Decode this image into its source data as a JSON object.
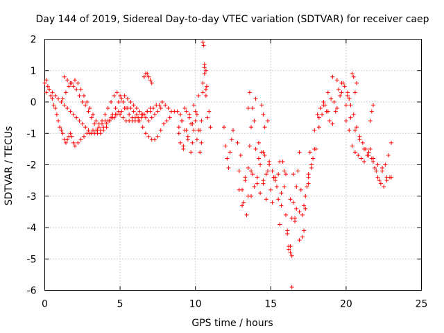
{
  "chart_data": {
    "type": "scatter",
    "title": "Day 144 of 2019, Sidereal Day-to-day VTEC variation (SDTVAR) for receiver caep",
    "xlabel": "GPS time / hours",
    "ylabel": "SDTVAR / TECUs",
    "xlim": [
      0,
      25
    ],
    "ylim": [
      -6,
      2
    ],
    "xticks": [
      0,
      5,
      10,
      15,
      20,
      25
    ],
    "yticks": [
      -6,
      -5,
      -4,
      -3,
      -2,
      -1,
      0,
      1,
      2
    ],
    "grid": true,
    "marker": "+",
    "color": "#ff0000",
    "series": [
      {
        "name": "SDTVAR",
        "x": [
          0.0,
          0.1,
          0.2,
          0.3,
          0.4,
          0.5,
          0.6,
          0.7,
          0.8,
          0.9,
          1.0,
          1.1,
          1.2,
          1.3,
          1.4,
          1.5,
          1.6,
          1.7,
          1.8,
          1.9,
          2.0,
          2.2,
          2.4,
          2.6,
          2.8,
          3.0,
          3.2,
          3.4,
          3.6,
          3.8,
          4.0,
          4.2,
          4.4,
          4.6,
          4.8,
          5.0,
          5.2,
          5.4,
          5.6,
          5.8,
          6.0,
          6.2,
          6.4,
          6.6,
          6.8,
          7.0,
          7.2,
          7.4,
          7.6,
          7.8,
          8.0,
          8.2,
          8.4,
          8.6,
          0.1,
          0.3,
          0.5,
          0.7,
          0.9,
          1.1,
          1.3,
          1.5,
          1.7,
          1.9,
          2.1,
          2.3,
          2.5,
          2.7,
          2.9,
          3.1,
          3.3,
          3.5,
          3.7,
          3.9,
          4.1,
          4.3,
          4.5,
          4.7,
          4.9,
          5.1,
          5.3,
          5.5,
          5.7,
          5.9,
          6.1,
          6.3,
          6.5,
          6.7,
          6.9,
          7.1,
          7.3,
          7.5,
          7.7,
          7.9,
          8.1,
          8.3,
          1.3,
          1.5,
          1.7,
          1.9,
          2.1,
          2.3,
          2.5,
          2.7,
          2.9,
          3.1,
          3.3,
          3.5,
          3.7,
          3.9,
          4.1,
          4.3,
          4.5,
          4.7,
          4.9,
          5.1,
          5.3,
          5.5,
          5.7,
          5.9,
          6.1,
          6.3,
          6.5,
          6.7,
          6.9,
          7.1,
          7.3,
          7.5,
          7.7,
          1.2,
          1.4,
          1.6,
          1.8,
          2.0,
          2.2,
          2.4,
          2.6,
          2.8,
          3.0,
          3.2,
          3.4,
          3.6,
          3.8,
          4.0,
          4.2,
          4.4,
          4.6,
          4.8,
          5.0,
          5.2,
          5.4,
          5.6,
          5.8,
          6.0,
          6.2,
          6.4,
          6.6,
          6.8,
          7.0,
          6.6,
          6.7,
          6.8,
          6.9,
          7.0,
          7.1,
          8.8,
          8.9,
          9.0,
          9.1,
          9.2,
          9.3,
          9.4,
          9.5,
          9.6,
          9.7,
          9.8,
          9.9,
          10.0,
          10.1,
          10.2,
          10.3,
          10.4,
          10.5,
          10.6,
          10.7,
          10.8,
          10.9,
          11.0,
          8.9,
          9.0,
          9.1,
          9.2,
          9.3,
          9.4,
          9.5,
          9.6,
          9.7,
          9.8,
          9.9,
          10.0,
          10.1,
          10.2,
          10.3,
          10.4,
          10.5,
          10.6,
          10.7,
          10.5,
          10.55,
          10.6,
          10.7,
          10.75,
          11.9,
          12.0,
          12.1,
          12.2,
          12.3,
          12.4,
          12.5,
          12.8,
          12.9,
          13.0,
          13.1,
          13.2,
          13.3,
          13.4,
          13.5,
          13.6,
          13.7,
          13.8,
          13.9,
          14.0,
          14.1,
          14.2,
          14.3,
          14.4,
          14.5,
          14.6,
          14.7,
          14.8,
          14.9,
          15.0,
          15.1,
          15.2,
          15.3,
          15.4,
          15.5,
          15.6,
          15.7,
          15.8,
          15.9,
          16.0,
          16.1,
          16.2,
          16.3,
          16.4,
          16.5,
          16.6,
          16.7,
          16.8,
          16.9,
          17.0,
          17.1,
          17.2,
          17.3,
          17.4,
          17.5,
          17.6,
          17.7,
          17.8,
          17.9,
          12.9,
          13.1,
          13.3,
          13.5,
          13.7,
          13.9,
          14.1,
          14.3,
          14.5,
          14.7,
          14.9,
          15.1,
          15.3,
          15.5,
          15.7,
          15.9,
          16.1,
          16.3,
          16.5,
          16.7,
          16.9,
          17.1,
          17.3,
          17.5,
          17.7,
          13.5,
          13.7,
          14.0,
          14.2,
          14.5,
          14.8,
          15.2,
          15.6,
          16.0,
          16.3,
          16.4,
          16.6,
          16.9,
          17.2,
          17.5,
          16.4,
          16.2,
          14.4,
          14.5,
          14.6,
          13.6,
          13.8,
          18.0,
          18.2,
          18.4,
          18.6,
          18.8,
          19.0,
          19.2,
          19.4,
          19.6,
          19.8,
          20.0,
          20.2,
          20.4,
          20.6,
          20.8,
          21.0,
          21.2,
          21.4,
          21.6,
          21.8,
          22.0,
          22.2,
          22.4,
          22.6,
          22.8,
          23.0,
          18.1,
          18.3,
          18.5,
          18.7,
          18.9,
          19.1,
          19.3,
          19.5,
          19.7,
          19.9,
          20.1,
          20.3,
          20.5,
          20.7,
          20.9,
          21.1,
          21.3,
          21.5,
          21.7,
          21.9,
          22.1,
          22.3,
          22.5,
          22.7,
          22.9,
          17.9,
          18.2,
          18.5,
          18.8,
          19.1,
          19.4,
          19.7,
          20.0,
          20.3,
          20.6,
          20.9,
          21.2,
          21.5,
          21.8,
          22.1,
          22.4,
          22.7,
          23.0,
          20.1,
          20.2,
          20.4,
          20.5,
          20.6,
          20.7,
          21.6,
          21.7,
          21.8
        ],
        "y": [
          0.6,
          0.7,
          0.5,
          0.4,
          0.2,
          0.1,
          -0.1,
          -0.2,
          -0.4,
          -0.6,
          -0.8,
          -0.9,
          -1.0,
          -1.2,
          -1.3,
          -1.2,
          -1.1,
          -1.0,
          -1.1,
          -1.3,
          -1.4,
          -1.3,
          -1.2,
          -1.1,
          -1.0,
          -1.0,
          -0.9,
          -0.9,
          -0.8,
          -0.7,
          -0.6,
          -0.6,
          -0.5,
          -0.5,
          -0.4,
          -0.4,
          -0.5,
          -0.6,
          -0.6,
          -0.6,
          -0.5,
          -0.5,
          -0.4,
          -0.4,
          -0.3,
          -0.3,
          -0.2,
          -0.1,
          -0.1,
          0.0,
          -0.1,
          -0.2,
          -0.3,
          -0.3,
          0.3,
          0.4,
          0.3,
          0.2,
          0.1,
          0.0,
          -0.1,
          -0.2,
          -0.3,
          -0.4,
          -0.5,
          -0.6,
          -0.7,
          -0.8,
          -0.9,
          -1.0,
          -1.0,
          -1.0,
          -0.9,
          -0.8,
          -0.7,
          -0.6,
          -0.5,
          -0.4,
          -0.3,
          -0.3,
          -0.2,
          -0.2,
          -0.2,
          -0.3,
          -0.4,
          -0.6,
          -0.8,
          -1.0,
          -1.1,
          -1.2,
          -1.2,
          -1.1,
          -0.9,
          -0.7,
          -0.6,
          -0.5,
          0.8,
          0.7,
          0.6,
          0.5,
          0.4,
          0.2,
          0.0,
          -0.1,
          -0.3,
          -0.5,
          -0.7,
          -0.9,
          -1.0,
          -0.9,
          -0.8,
          -0.6,
          -0.4,
          -0.2,
          0.0,
          0.1,
          0.2,
          0.1,
          0.0,
          -0.1,
          -0.2,
          -0.3,
          -0.4,
          -0.5,
          -0.6,
          -0.5,
          -0.4,
          -0.3,
          -0.2,
          0.1,
          0.3,
          0.5,
          0.6,
          0.7,
          0.6,
          0.4,
          0.2,
          0.0,
          -0.2,
          -0.4,
          -0.6,
          -0.7,
          -0.6,
          -0.4,
          -0.2,
          0.0,
          0.2,
          0.3,
          0.2,
          0.0,
          -0.2,
          -0.4,
          -0.5,
          -0.6,
          -0.6,
          -0.5,
          -0.4,
          -0.3,
          -0.2,
          0.8,
          0.9,
          0.9,
          0.8,
          0.7,
          0.6,
          -0.3,
          -0.8,
          -1.3,
          -0.6,
          -1.5,
          -0.2,
          -0.9,
          -1.1,
          -0.4,
          -1.6,
          -0.7,
          -0.1,
          -0.6,
          -1.2,
          0.2,
          -0.9,
          -1.3,
          0.6,
          0.9,
          0.4,
          -0.5,
          -0.3,
          -0.8,
          -1.0,
          -0.4,
          -0.6,
          -1.4,
          -0.9,
          -0.3,
          -1.2,
          -0.5,
          -0.7,
          -1.3,
          -0.9,
          -0.3,
          -0.4,
          -0.9,
          -1.6,
          -0.6,
          0.3,
          1.1,
          0.2,
          1.9,
          1.8,
          1.2,
          1.0,
          0.5,
          -0.8,
          -1.4,
          -1.8,
          -2.1,
          -1.6,
          -1.2,
          -0.9,
          -1.3,
          -2.2,
          -1.7,
          -2.8,
          -3.2,
          -2.4,
          -3.6,
          -2.1,
          -1.4,
          -3.0,
          -2.3,
          -0.6,
          -1.5,
          -2.6,
          -1.8,
          -2.9,
          -1.6,
          -2.5,
          -1.7,
          -3.1,
          -2.2,
          -1.9,
          -2.8,
          -3.2,
          -2.4,
          -2.5,
          -2.7,
          -3.1,
          -3.9,
          -2.9,
          -1.9,
          -2.2,
          -3.6,
          -4.2,
          -4.6,
          -4.8,
          -3.7,
          -2.3,
          -3.8,
          -3.4,
          -2.2,
          -1.6,
          -2.8,
          -3.6,
          -4.1,
          -3.4,
          -2.7,
          -2.3,
          -1.6,
          -2.1,
          -1.8,
          -1.5,
          -2.8,
          -3.3,
          -2.5,
          -3.0,
          -2.2,
          -2.7,
          -2.4,
          -2.0,
          -2.6,
          -2.3,
          -2.0,
          -2.2,
          -2.4,
          -2.3,
          -3.3,
          -2.7,
          -4.1,
          -4.6,
          -3.2,
          -2.7,
          -3.5,
          -4.3,
          -3.0,
          -2.6,
          -2.0,
          -0.2,
          -0.8,
          0.1,
          -1.3,
          -1.6,
          -0.6,
          -2.4,
          -1.9,
          -2.3,
          -3.1,
          -5.9,
          -3.7,
          -4.4,
          -3.3,
          -2.4,
          -4.9,
          -4.7,
          -0.1,
          -0.4,
          -0.8,
          0.3,
          -0.2,
          -1.5,
          -0.8,
          -0.4,
          -0.1,
          -0.3,
          0.1,
          0.0,
          -0.2,
          0.2,
          0.6,
          -0.6,
          -0.9,
          -1.4,
          -1.6,
          -1.7,
          -1.8,
          -1.9,
          -1.7,
          -1.5,
          -1.9,
          -2.2,
          -2.5,
          -2.1,
          -2.0,
          -1.7,
          -1.3,
          -0.4,
          -0.2,
          0.0,
          -0.3,
          -0.6,
          -0.7,
          -0.3,
          0.4,
          0.6,
          0.5,
          0.2,
          -0.1,
          -0.4,
          -0.8,
          -1.1,
          -1.3,
          -1.5,
          -1.6,
          -1.8,
          -2.1,
          -2.4,
          -2.6,
          -2.7,
          -2.5,
          -2.4,
          -0.9,
          -0.5,
          -0.1,
          0.3,
          0.8,
          0.7,
          0.3,
          -0.1,
          -0.5,
          -0.9,
          -1.2,
          -1.5,
          -1.7,
          -1.8,
          -2.0,
          -2.2,
          -2.4,
          -2.4,
          0.3,
          0.1,
          0.9,
          0.8,
          0.3,
          0.6,
          -0.6,
          -0.3,
          -0.1
        ]
      }
    ]
  }
}
